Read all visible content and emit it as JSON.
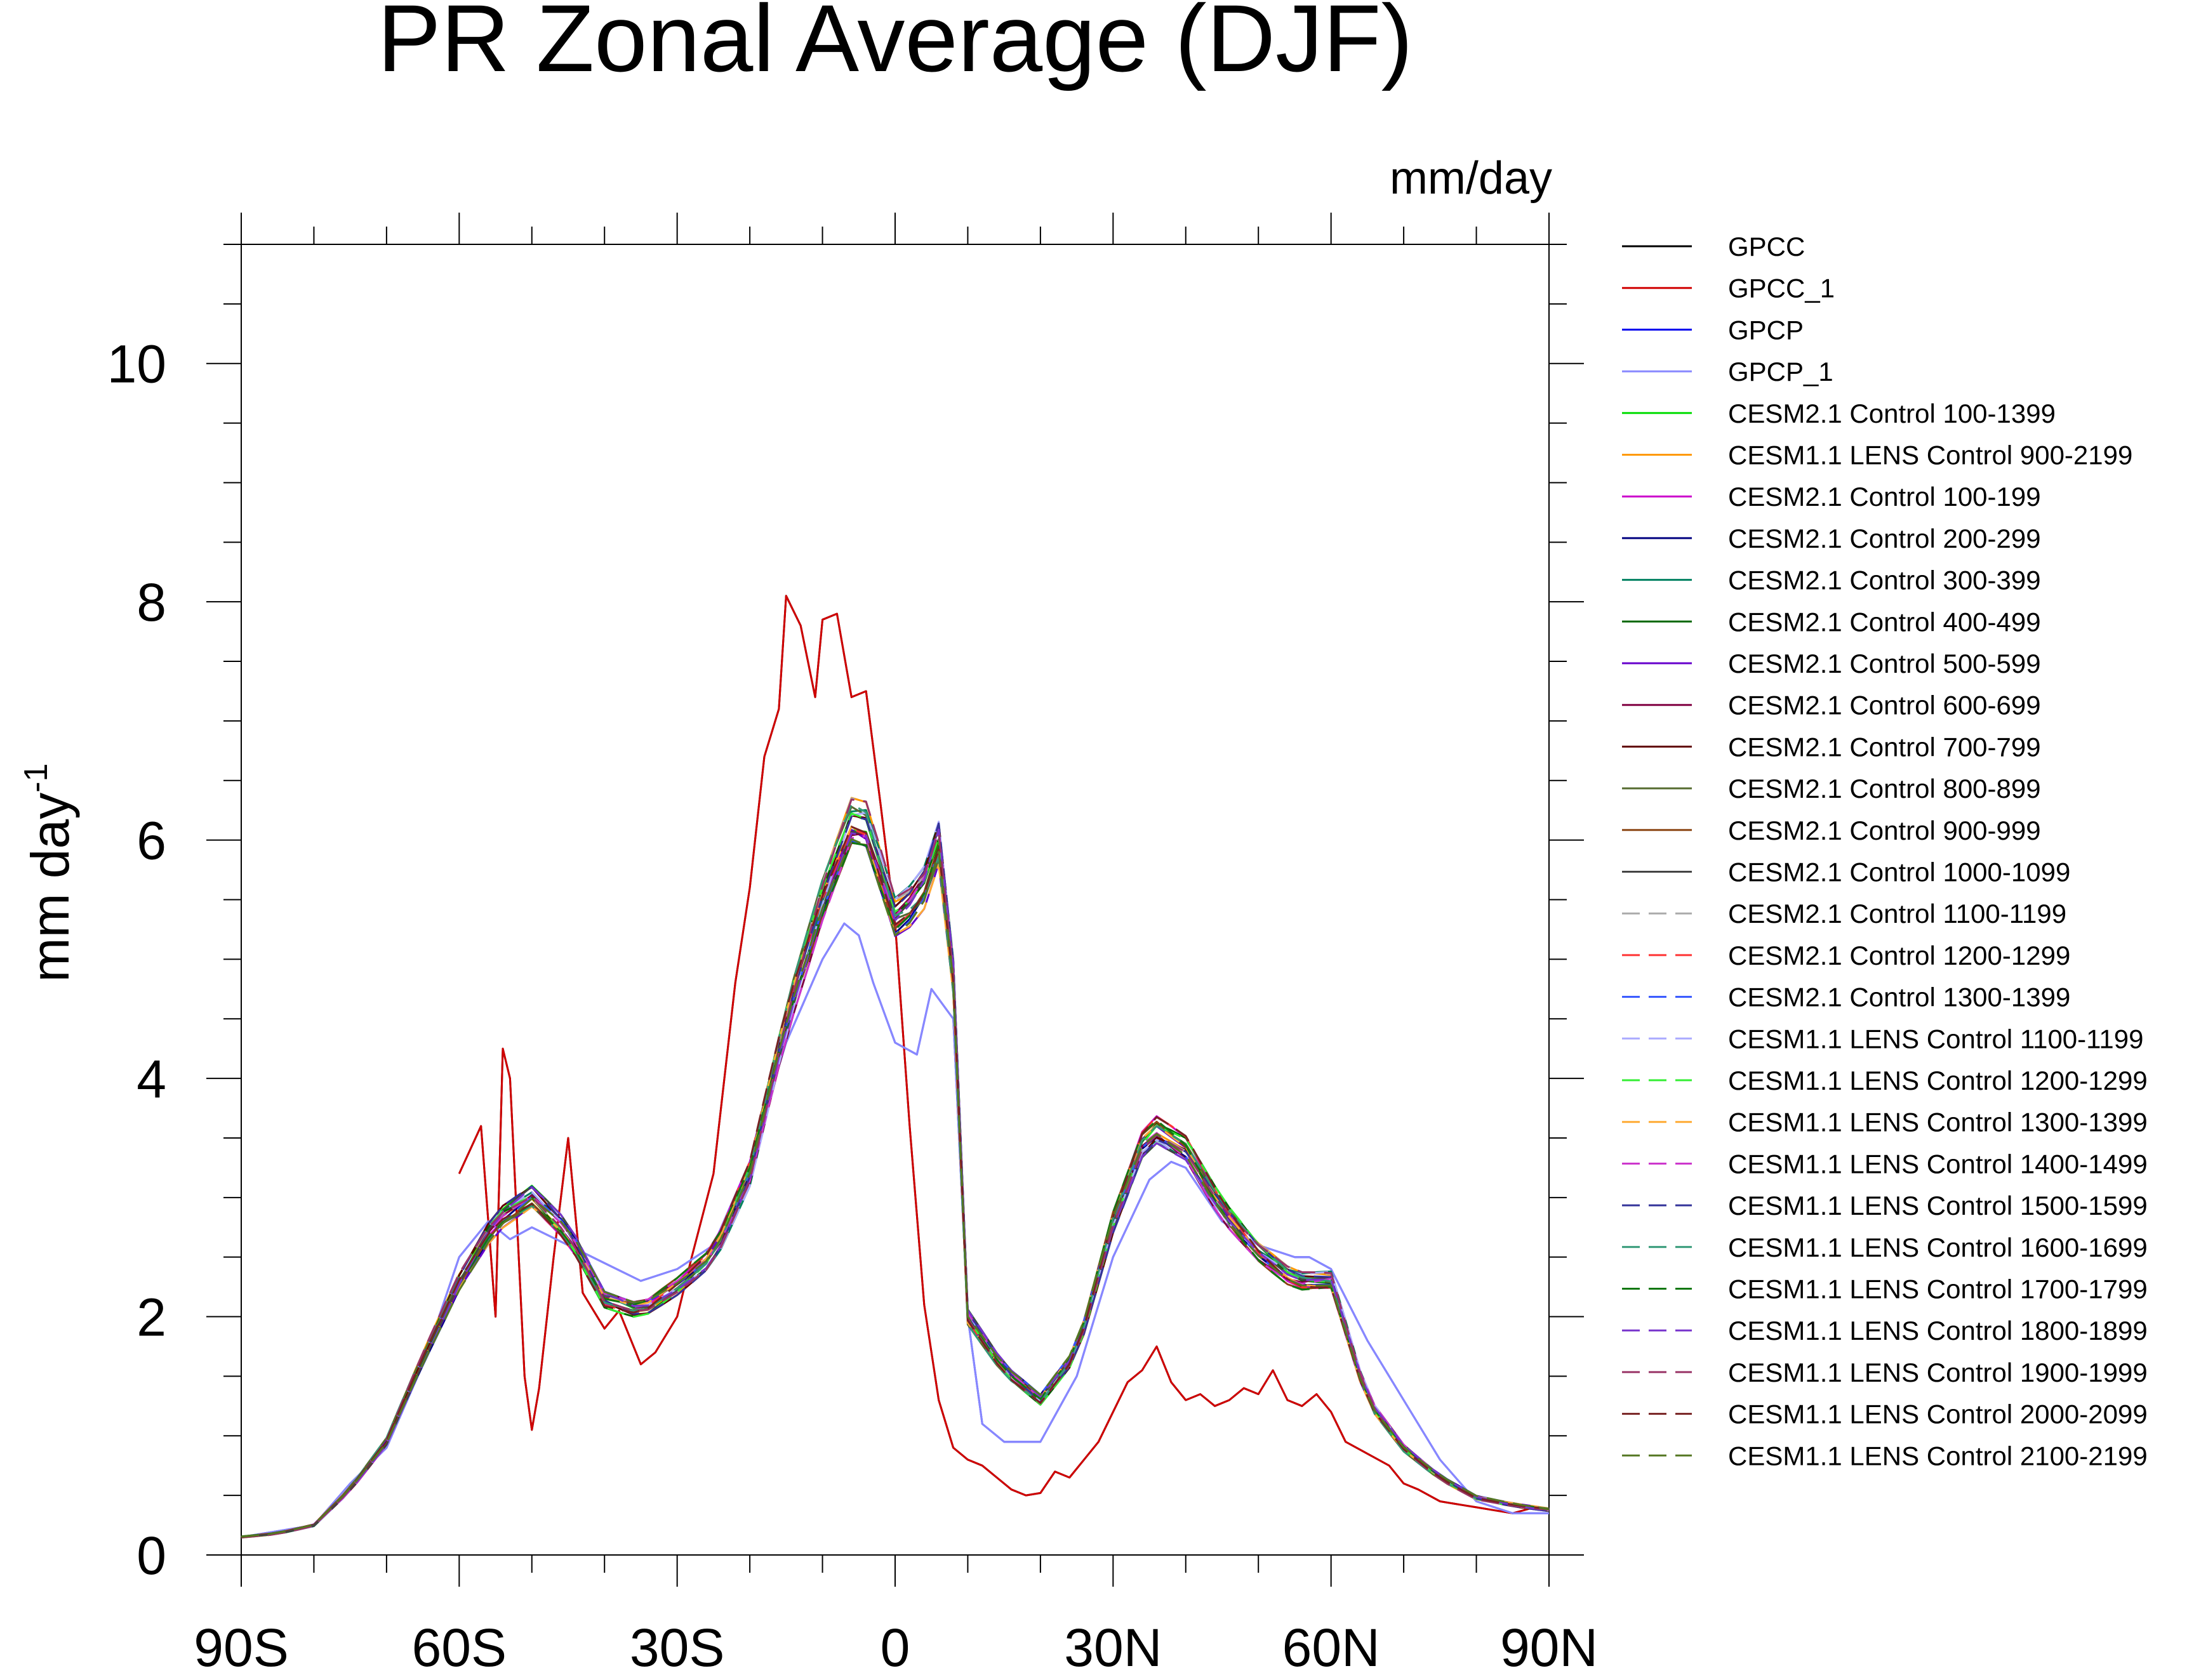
{
  "chart_data": {
    "type": "line",
    "title": "PR Zonal Average (DJF)",
    "units": "mm/day",
    "ylabel": "mm day",
    "ylabel_superscript": "-1",
    "xlabel": "",
    "xlim": [
      -90,
      90
    ],
    "ylim": [
      0,
      11
    ],
    "x_ticks": [
      {
        "value": -90,
        "label": "90S"
      },
      {
        "value": -60,
        "label": "60S"
      },
      {
        "value": -30,
        "label": "30S"
      },
      {
        "value": 0,
        "label": "0"
      },
      {
        "value": 30,
        "label": "30N"
      },
      {
        "value": 60,
        "label": "60N"
      },
      {
        "value": 90,
        "label": "90N"
      }
    ],
    "y_ticks": [
      {
        "value": 0,
        "label": "0"
      },
      {
        "value": 2,
        "label": "2"
      },
      {
        "value": 4,
        "label": "4"
      },
      {
        "value": 6,
        "label": "6"
      },
      {
        "value": 8,
        "label": "8"
      },
      {
        "value": 10,
        "label": "10"
      }
    ],
    "model_profile": {
      "lat": [
        -90,
        -85,
        -80,
        -75,
        -70,
        -65,
        -60,
        -55,
        -50,
        -45,
        -40,
        -35,
        -30,
        -25,
        -20,
        -15,
        -10,
        -5,
        0,
        2,
        5,
        7,
        10,
        15,
        20,
        25,
        30,
        35,
        40,
        45,
        50,
        55,
        60,
        65,
        70,
        75,
        80,
        85,
        90
      ],
      "values": [
        0.15,
        0.18,
        0.25,
        0.55,
        0.95,
        1.65,
        2.3,
        2.8,
        3.0,
        2.7,
        2.15,
        2.05,
        2.25,
        2.5,
        3.2,
        4.5,
        5.5,
        6.3,
        5.35,
        5.45,
        5.7,
        6.3,
        2.0,
        1.55,
        1.3,
        1.7,
        2.8,
        3.6,
        3.4,
        2.9,
        2.55,
        2.3,
        2.3,
        1.3,
        0.9,
        0.65,
        0.48,
        0.42,
        0.38
      ]
    },
    "series": [
      {
        "name": "GPCC",
        "color": "#000000",
        "dash": "solid",
        "x": [
          -60,
          -57,
          -55,
          -54,
          -53,
          -51,
          -50,
          -49,
          -47,
          -45,
          -43,
          -40,
          -38,
          -35,
          -33,
          -30,
          -28,
          -25,
          -22,
          -20,
          -18,
          -16,
          -15,
          -13,
          -11,
          -10,
          -8,
          -6,
          -4,
          -2,
          0,
          2,
          4,
          6,
          8,
          10,
          12,
          14,
          16,
          18,
          20,
          22,
          24,
          26,
          28,
          30,
          32,
          34,
          36,
          38,
          40,
          42,
          44,
          46,
          48,
          50,
          52,
          54,
          56,
          58,
          60,
          62,
          65,
          68,
          70,
          72,
          75,
          78,
          80,
          82,
          85,
          88,
          90
        ],
        "y": [
          3.2,
          3.6,
          2.0,
          4.25,
          4.0,
          1.5,
          1.05,
          1.4,
          2.5,
          3.5,
          2.2,
          1.9,
          2.05,
          1.6,
          1.7,
          2.0,
          2.5,
          3.2,
          4.8,
          5.6,
          6.7,
          7.1,
          8.05,
          7.8,
          7.2,
          7.85,
          7.9,
          7.2,
          7.25,
          6.3,
          5.3,
          3.6,
          2.1,
          1.3,
          0.9,
          0.8,
          0.75,
          0.65,
          0.55,
          0.5,
          0.52,
          0.7,
          0.65,
          0.8,
          0.95,
          1.2,
          1.45,
          1.55,
          1.75,
          1.45,
          1.3,
          1.35,
          1.25,
          1.3,
          1.4,
          1.35,
          1.55,
          1.3,
          1.25,
          1.35,
          1.2,
          0.95,
          0.85,
          0.75,
          0.6,
          0.55,
          0.45,
          0.42,
          0.4,
          0.38,
          0.35,
          0.4,
          0.38
        ]
      },
      {
        "name": "GPCC_1",
        "color": "#d00000",
        "dash": "solid",
        "x": [
          -60,
          -57,
          -55,
          -54,
          -53,
          -51,
          -50,
          -49,
          -47,
          -45,
          -43,
          -40,
          -38,
          -35,
          -33,
          -30,
          -28,
          -25,
          -22,
          -20,
          -18,
          -16,
          -15,
          -13,
          -11,
          -10,
          -8,
          -6,
          -4,
          -2,
          0,
          2,
          4,
          6,
          8,
          10,
          12,
          14,
          16,
          18,
          20,
          22,
          24,
          26,
          28,
          30,
          32,
          34,
          36,
          38,
          40,
          42,
          44,
          46,
          48,
          50,
          52,
          54,
          56,
          58,
          60,
          62,
          65,
          68,
          70,
          72,
          75,
          78,
          80,
          82,
          85,
          88,
          90
        ],
        "y": [
          3.2,
          3.6,
          2.0,
          4.25,
          4.0,
          1.5,
          1.05,
          1.4,
          2.5,
          3.5,
          2.2,
          1.9,
          2.05,
          1.6,
          1.7,
          2.0,
          2.5,
          3.2,
          4.8,
          5.6,
          6.7,
          7.1,
          8.05,
          7.8,
          7.2,
          7.85,
          7.9,
          7.2,
          7.25,
          6.3,
          5.3,
          3.6,
          2.1,
          1.3,
          0.9,
          0.8,
          0.75,
          0.65,
          0.55,
          0.5,
          0.52,
          0.7,
          0.65,
          0.8,
          0.95,
          1.2,
          1.45,
          1.55,
          1.75,
          1.45,
          1.3,
          1.35,
          1.25,
          1.3,
          1.4,
          1.35,
          1.55,
          1.3,
          1.25,
          1.35,
          1.2,
          0.95,
          0.85,
          0.75,
          0.6,
          0.55,
          0.45,
          0.42,
          0.4,
          0.38,
          0.35,
          0.4,
          0.38
        ]
      },
      {
        "name": "GPCP",
        "color": "#0000ee",
        "dash": "solid",
        "x": [
          -90,
          -85,
          -80,
          -75,
          -70,
          -65,
          -60,
          -56,
          -53,
          -50,
          -45,
          -40,
          -35,
          -30,
          -25,
          -20,
          -15,
          -10,
          -7,
          -5,
          -3,
          0,
          3,
          5,
          8,
          10,
          12,
          15,
          20,
          25,
          30,
          35,
          38,
          40,
          45,
          50,
          55,
          57,
          60,
          65,
          70,
          75,
          80,
          85,
          90
        ],
        "y": [
          0.15,
          0.2,
          0.25,
          0.6,
          0.9,
          1.6,
          2.5,
          2.8,
          2.65,
          2.75,
          2.6,
          2.45,
          2.3,
          2.4,
          2.6,
          3.3,
          4.3,
          5.0,
          5.3,
          5.2,
          4.8,
          4.3,
          4.2,
          4.75,
          4.5,
          2.0,
          1.1,
          0.95,
          0.95,
          1.5,
          2.5,
          3.15,
          3.3,
          3.25,
          2.8,
          2.6,
          2.5,
          2.5,
          2.4,
          1.8,
          1.3,
          0.8,
          0.45,
          0.35,
          0.35
        ]
      },
      {
        "name": "GPCP_1",
        "color": "#8888ff",
        "dash": "solid",
        "x": [
          -90,
          -85,
          -80,
          -75,
          -70,
          -65,
          -60,
          -56,
          -53,
          -50,
          -45,
          -40,
          -35,
          -30,
          -25,
          -20,
          -15,
          -10,
          -7,
          -5,
          -3,
          0,
          3,
          5,
          8,
          10,
          12,
          15,
          20,
          25,
          30,
          35,
          38,
          40,
          45,
          50,
          55,
          57,
          60,
          65,
          70,
          75,
          80,
          85,
          90
        ],
        "y": [
          0.15,
          0.2,
          0.25,
          0.6,
          0.9,
          1.6,
          2.5,
          2.8,
          2.65,
          2.75,
          2.6,
          2.45,
          2.3,
          2.4,
          2.6,
          3.3,
          4.3,
          5.0,
          5.3,
          5.2,
          4.8,
          4.3,
          4.2,
          4.75,
          4.5,
          2.0,
          1.1,
          0.95,
          0.95,
          1.5,
          2.5,
          3.15,
          3.3,
          3.25,
          2.8,
          2.6,
          2.5,
          2.5,
          2.4,
          1.8,
          1.3,
          0.8,
          0.45,
          0.35,
          0.35
        ]
      },
      {
        "name": "CESM2.1 Control 100-1399",
        "color": "#00dd00",
        "dash": "solid"
      },
      {
        "name": "CESM1.1 LENS Control 900-2199",
        "color": "#ff9900",
        "dash": "solid"
      },
      {
        "name": "CESM2.1 Control 100-199",
        "color": "#cc00cc",
        "dash": "solid"
      },
      {
        "name": "CESM2.1 Control 200-299",
        "color": "#000080",
        "dash": "solid"
      },
      {
        "name": "CESM2.1 Control 300-399",
        "color": "#008060",
        "dash": "solid"
      },
      {
        "name": "CESM2.1 Control 400-499",
        "color": "#006600",
        "dash": "solid"
      },
      {
        "name": "CESM2.1 Control 500-599",
        "color": "#6600cc",
        "dash": "solid"
      },
      {
        "name": "CESM2.1 Control 600-699",
        "color": "#800040",
        "dash": "solid"
      },
      {
        "name": "CESM2.1 Control 700-799",
        "color": "#600000",
        "dash": "solid"
      },
      {
        "name": "CESM2.1 Control 800-899",
        "color": "#556b2f",
        "dash": "solid"
      },
      {
        "name": "CESM2.1 Control 900-999",
        "color": "#8b4513",
        "dash": "solid"
      },
      {
        "name": "CESM2.1 Control 1000-1099",
        "color": "#444444",
        "dash": "solid"
      },
      {
        "name": "CESM2.1 Control 1100-1199",
        "color": "#aaaaaa",
        "dash": "dashed"
      },
      {
        "name": "CESM2.1 Control 1200-1299",
        "color": "#ff3333",
        "dash": "dashed"
      },
      {
        "name": "CESM2.1 Control 1300-1399",
        "color": "#3355ff",
        "dash": "dashed"
      },
      {
        "name": "CESM1.1 LENS Control 1100-1199",
        "color": "#aaaaff",
        "dash": "dashed"
      },
      {
        "name": "CESM1.1 LENS Control 1200-1299",
        "color": "#33ee33",
        "dash": "dashed"
      },
      {
        "name": "CESM1.1 LENS Control 1300-1399",
        "color": "#ffaa33",
        "dash": "dashed"
      },
      {
        "name": "CESM1.1 LENS Control 1400-1499",
        "color": "#cc33cc",
        "dash": "dashed"
      },
      {
        "name": "CESM1.1 LENS Control 1500-1599",
        "color": "#333399",
        "dash": "dashed"
      },
      {
        "name": "CESM1.1 LENS Control 1600-1699",
        "color": "#339977",
        "dash": "dashed"
      },
      {
        "name": "CESM1.1 LENS Control 1700-1799",
        "color": "#117711",
        "dash": "dashed"
      },
      {
        "name": "CESM1.1 LENS Control 1800-1899",
        "color": "#7733cc",
        "dash": "dashed"
      },
      {
        "name": "CESM1.1 LENS Control 1900-1999",
        "color": "#993366",
        "dash": "dashed"
      },
      {
        "name": "CESM1.1 LENS Control 2000-2099",
        "color": "#772222",
        "dash": "dashed"
      },
      {
        "name": "CESM1.1 LENS Control 2100-2199",
        "color": "#557722",
        "dash": "dashed"
      }
    ]
  }
}
